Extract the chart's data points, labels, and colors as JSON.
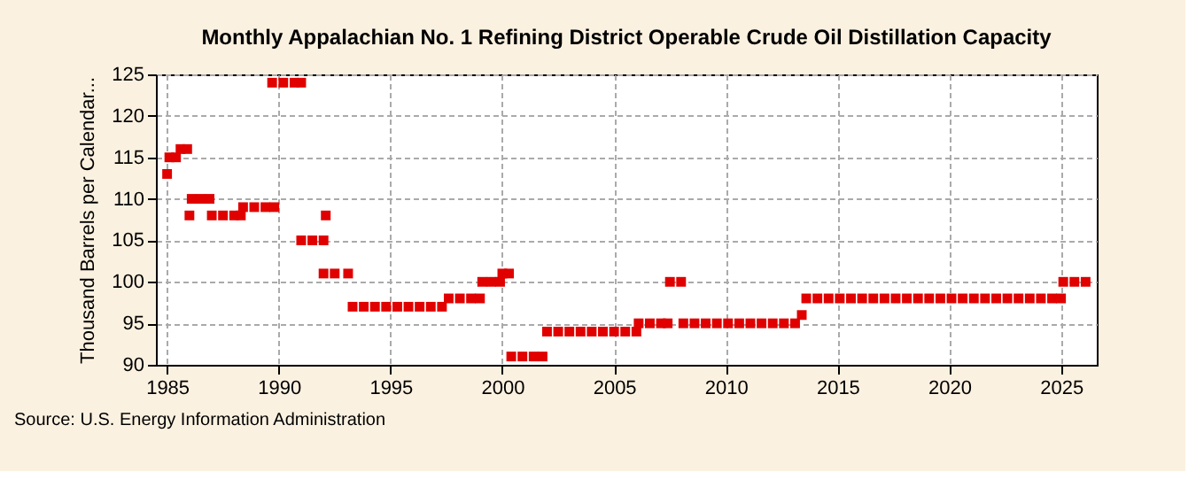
{
  "chart_data": {
    "type": "scatter",
    "title": "Monthly Appalachian No. 1 Refining District Operable Crude Oil Distillation Capacity",
    "ylabel": "Thousand Barrels per Calendar...",
    "annotations": [
      "Source: U.S. Energy Information Administration"
    ],
    "x": [
      1985.0,
      1985.1,
      1985.4,
      1985.6,
      1985.9,
      1986.0,
      1986.1,
      1986.5,
      1986.9,
      1987.0,
      1987.5,
      1988.0,
      1988.3,
      1988.4,
      1988.9,
      1989.4,
      1989.8,
      1989.7,
      1990.2,
      1990.7,
      1991.0,
      1991.0,
      1991.5,
      1992.0,
      1992.1,
      1992.0,
      1992.5,
      1993.1,
      1993.3,
      1993.8,
      1994.3,
      1994.8,
      1995.3,
      1995.8,
      1996.3,
      1996.8,
      1997.3,
      1997.6,
      1998.1,
      1998.6,
      1999.0,
      1999.1,
      1999.5,
      1999.9,
      2000.0,
      2000.3,
      2000.4,
      2000.9,
      2001.4,
      2001.8,
      2002.0,
      2002.5,
      2003.0,
      2003.5,
      2004.0,
      2004.5,
      2005.0,
      2005.5,
      2006.0,
      2006.1,
      2006.6,
      2007.1,
      2007.4,
      2007.5,
      2008.0,
      2008.1,
      2008.6,
      2009.1,
      2009.6,
      2010.1,
      2010.6,
      2011.1,
      2011.6,
      2012.1,
      2012.6,
      2013.1,
      2013.4,
      2013.6,
      2014.1,
      2014.6,
      2015.1,
      2015.6,
      2016.1,
      2016.6,
      2017.1,
      2017.6,
      2018.1,
      2018.6,
      2019.1,
      2019.6,
      2020.1,
      2020.6,
      2021.1,
      2021.6,
      2022.1,
      2022.6,
      2023.1,
      2023.6,
      2024.1,
      2024.6,
      2025.0,
      2025.1,
      2025.6,
      2026.1
    ],
    "series": [
      {
        "color": "#e00000",
        "values": [
          113,
          115,
          115,
          116,
          116,
          108,
          110,
          110,
          110,
          108,
          108,
          108,
          108,
          109,
          109,
          109,
          109,
          124,
          124,
          124,
          124,
          105,
          105,
          105,
          108,
          101,
          101,
          101,
          97,
          97,
          97,
          97,
          97,
          97,
          97,
          97,
          97,
          98,
          98,
          98,
          98,
          100,
          100,
          100,
          101,
          101,
          91,
          91,
          91,
          91,
          94,
          94,
          94,
          94,
          94,
          94,
          94,
          94,
          94,
          95,
          95,
          95,
          95,
          100,
          100,
          95,
          95,
          95,
          95,
          95,
          95,
          95,
          95,
          95,
          95,
          95,
          96,
          98,
          98,
          98,
          98,
          98,
          98,
          98,
          98,
          98,
          98,
          98,
          98,
          98,
          98,
          98,
          98,
          98,
          98,
          98,
          98,
          98,
          98,
          98,
          98,
          100,
          100,
          100
        ]
      }
    ],
    "xlim": [
      1984.5,
      2026.6
    ],
    "xticks": [
      1985,
      1990,
      1995,
      2000,
      2005,
      2010,
      2015,
      2020,
      2025
    ],
    "ylim": [
      90,
      125
    ],
    "yticks": [
      90,
      95,
      100,
      105,
      110,
      115,
      120,
      125
    ],
    "grid": true,
    "marker": "square"
  }
}
